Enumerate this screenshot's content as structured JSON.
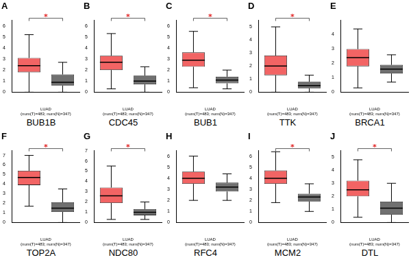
{
  "chart_data": [
    {
      "type": "boxplot",
      "title": "A",
      "caption": "BUB1B",
      "categories": [
        null,
        null
      ],
      "xlabel": [
        "LUAD",
        "(num(T)=483; num(N)=347)"
      ],
      "colors": [
        "#f26464",
        "#707070"
      ],
      "values": [
        {
          "min": 0.0,
          "q1": 1.8,
          "median": 2.4,
          "q3": 3.1,
          "max": 5.2
        },
        {
          "min": 0.0,
          "q1": 0.6,
          "median": 0.9,
          "q3": 1.6,
          "max": 2.7
        }
      ],
      "ylim": [
        0,
        6.5
      ],
      "yticks": [
        0,
        1,
        2,
        3,
        4,
        5,
        6
      ],
      "grid": false,
      "annotations": [
        {
          "text": "*",
          "between": [
            0,
            1
          ]
        }
      ]
    },
    {
      "type": "boxplot",
      "title": "B",
      "caption": "CDC45",
      "categories": [
        null,
        null
      ],
      "xlabel": [
        "LUAD",
        "(num(T)=483; num(N)=347)"
      ],
      "colors": [
        "#f26464",
        "#707070"
      ],
      "values": [
        {
          "min": 0.3,
          "q1": 2.0,
          "median": 2.7,
          "q3": 3.3,
          "max": 5.3
        },
        {
          "min": 0.0,
          "q1": 0.7,
          "median": 1.0,
          "q3": 1.5,
          "max": 2.3
        }
      ],
      "ylim": [
        0,
        6.5
      ],
      "yticks": [
        0,
        1,
        2,
        3,
        4,
        5,
        6
      ],
      "grid": false,
      "annotations": [
        {
          "text": "*",
          "between": [
            0,
            1
          ]
        }
      ]
    },
    {
      "type": "boxplot",
      "title": "C",
      "caption": "BUB1",
      "categories": [
        null,
        null
      ],
      "xlabel": [
        "LUAD",
        "(num(T)=483; num(N)=347)"
      ],
      "colors": [
        "#f26464",
        "#707070"
      ],
      "values": [
        {
          "min": 0.4,
          "q1": 2.3,
          "median": 2.9,
          "q3": 3.6,
          "max": 5.5
        },
        {
          "min": 0.3,
          "q1": 0.8,
          "median": 1.1,
          "q3": 1.4,
          "max": 2.0
        }
      ],
      "ylim": [
        0,
        6.5
      ],
      "yticks": [
        0,
        1,
        2,
        3,
        4,
        5,
        6
      ],
      "grid": false,
      "annotations": [
        {
          "text": "*",
          "between": [
            0,
            1
          ]
        }
      ]
    },
    {
      "type": "boxplot",
      "title": "D",
      "caption": "TTK",
      "categories": [
        null,
        null
      ],
      "xlabel": [
        "LUAD",
        "(num(T)=483; num(N)=347)"
      ],
      "colors": [
        "#f26464",
        "#707070"
      ],
      "values": [
        {
          "min": 0.0,
          "q1": 1.3,
          "median": 2.0,
          "q3": 2.8,
          "max": 5.0
        },
        {
          "min": 0.0,
          "q1": 0.3,
          "median": 0.5,
          "q3": 0.8,
          "max": 1.3
        }
      ],
      "ylim": [
        0,
        5.5
      ],
      "yticks": [
        0,
        1,
        2,
        3,
        4,
        5
      ],
      "grid": false,
      "annotations": [
        {
          "text": "*",
          "between": [
            0,
            1
          ]
        }
      ]
    },
    {
      "type": "boxplot",
      "title": "E",
      "caption": "BRCA1",
      "categories": [
        null,
        null
      ],
      "xlabel": [
        "LUAD",
        "(num(T)=483; num(N)=347)"
      ],
      "colors": [
        "#f26464",
        "#707070"
      ],
      "values": [
        {
          "min": 0.3,
          "q1": 1.8,
          "median": 2.4,
          "q3": 3.0,
          "max": 4.4
        },
        {
          "min": 0.7,
          "q1": 1.3,
          "median": 1.6,
          "q3": 1.9,
          "max": 2.6
        }
      ],
      "ylim": [
        0,
        5
      ],
      "yticks": [
        0,
        1,
        2,
        3,
        4
      ],
      "grid": false
    },
    {
      "type": "boxplot",
      "title": "F",
      "caption": "TOP2A",
      "categories": [
        null,
        null
      ],
      "xlabel": [
        "LUAD",
        "(num(T)=483; num(N)=347)"
      ],
      "colors": [
        "#f26464",
        "#707070"
      ],
      "values": [
        {
          "min": 1.7,
          "q1": 3.9,
          "median": 4.7,
          "q3": 5.4,
          "max": 7.0
        },
        {
          "min": 0.0,
          "q1": 1.1,
          "median": 1.5,
          "q3": 2.1,
          "max": 3.5
        }
      ],
      "ylim": [
        0,
        7.5
      ],
      "yticks": [
        0,
        1,
        2,
        3,
        4,
        5,
        6,
        7
      ],
      "grid": false,
      "annotations": [
        {
          "text": "*",
          "between": [
            0,
            1
          ]
        }
      ]
    },
    {
      "type": "boxplot",
      "title": "G",
      "caption": "NDC80",
      "categories": [
        null,
        null
      ],
      "xlabel": [
        "LUAD",
        "(num(T)=483; num(N)=347)"
      ],
      "colors": [
        "#f26464",
        "#707070"
      ],
      "values": [
        {
          "min": 0.3,
          "q1": 1.9,
          "median": 2.6,
          "q3": 3.4,
          "max": 5.5
        },
        {
          "min": 0.3,
          "q1": 0.7,
          "median": 1.0,
          "q3": 1.3,
          "max": 2.0
        }
      ],
      "ylim": [
        0,
        7
      ],
      "yticks": [
        0,
        1,
        2,
        3,
        4,
        5,
        6,
        7
      ],
      "grid": false,
      "annotations": [
        {
          "text": "*",
          "between": [
            0,
            1
          ]
        }
      ]
    },
    {
      "type": "boxplot",
      "title": "H",
      "caption": "RFC4",
      "categories": [
        null,
        null
      ],
      "xlabel": [
        "LUAD",
        "(num(T)=483; num(N)=347)"
      ],
      "colors": [
        "#f26464",
        "#707070"
      ],
      "values": [
        {
          "min": 2.0,
          "q1": 3.5,
          "median": 4.0,
          "q3": 4.6,
          "max": 6.0
        },
        {
          "min": 2.0,
          "q1": 2.8,
          "median": 3.2,
          "q3": 3.6,
          "max": 4.4
        }
      ],
      "ylim": [
        0,
        6.5
      ],
      "yticks": [
        0,
        1,
        2,
        3,
        4,
        5,
        6
      ],
      "grid": false
    },
    {
      "type": "boxplot",
      "title": "I",
      "caption": "MCM2",
      "categories": [
        null,
        null
      ],
      "xlabel": [
        "LUAD",
        "(num(T)=483; num(N)=347)"
      ],
      "colors": [
        "#f26464",
        "#707070"
      ],
      "values": [
        {
          "min": 1.8,
          "q1": 3.5,
          "median": 4.0,
          "q3": 4.7,
          "max": 6.4
        },
        {
          "min": 1.0,
          "q1": 1.9,
          "median": 2.3,
          "q3": 2.6,
          "max": 3.5
        }
      ],
      "ylim": [
        0,
        6.5
      ],
      "yticks": [
        0,
        1,
        2,
        3,
        4,
        5,
        6
      ],
      "grid": false,
      "annotations": [
        {
          "text": "*",
          "between": [
            0,
            1
          ]
        }
      ]
    },
    {
      "type": "boxplot",
      "title": "J",
      "caption": "DTL",
      "categories": [
        null,
        null
      ],
      "xlabel": [
        "LUAD",
        "(num(T)=483; num(N)=347)"
      ],
      "colors": [
        "#f26464",
        "#707070"
      ],
      "values": [
        {
          "min": 0.4,
          "q1": 2.0,
          "median": 2.5,
          "q3": 3.2,
          "max": 4.8
        },
        {
          "min": 0.0,
          "q1": 0.6,
          "median": 1.1,
          "q3": 1.6,
          "max": 3.0
        }
      ],
      "ylim": [
        0,
        5.5
      ],
      "yticks": [
        0,
        1,
        2,
        3,
        4,
        5
      ],
      "grid": false,
      "annotations": [
        {
          "text": "*",
          "between": [
            0,
            1
          ]
        }
      ]
    }
  ]
}
